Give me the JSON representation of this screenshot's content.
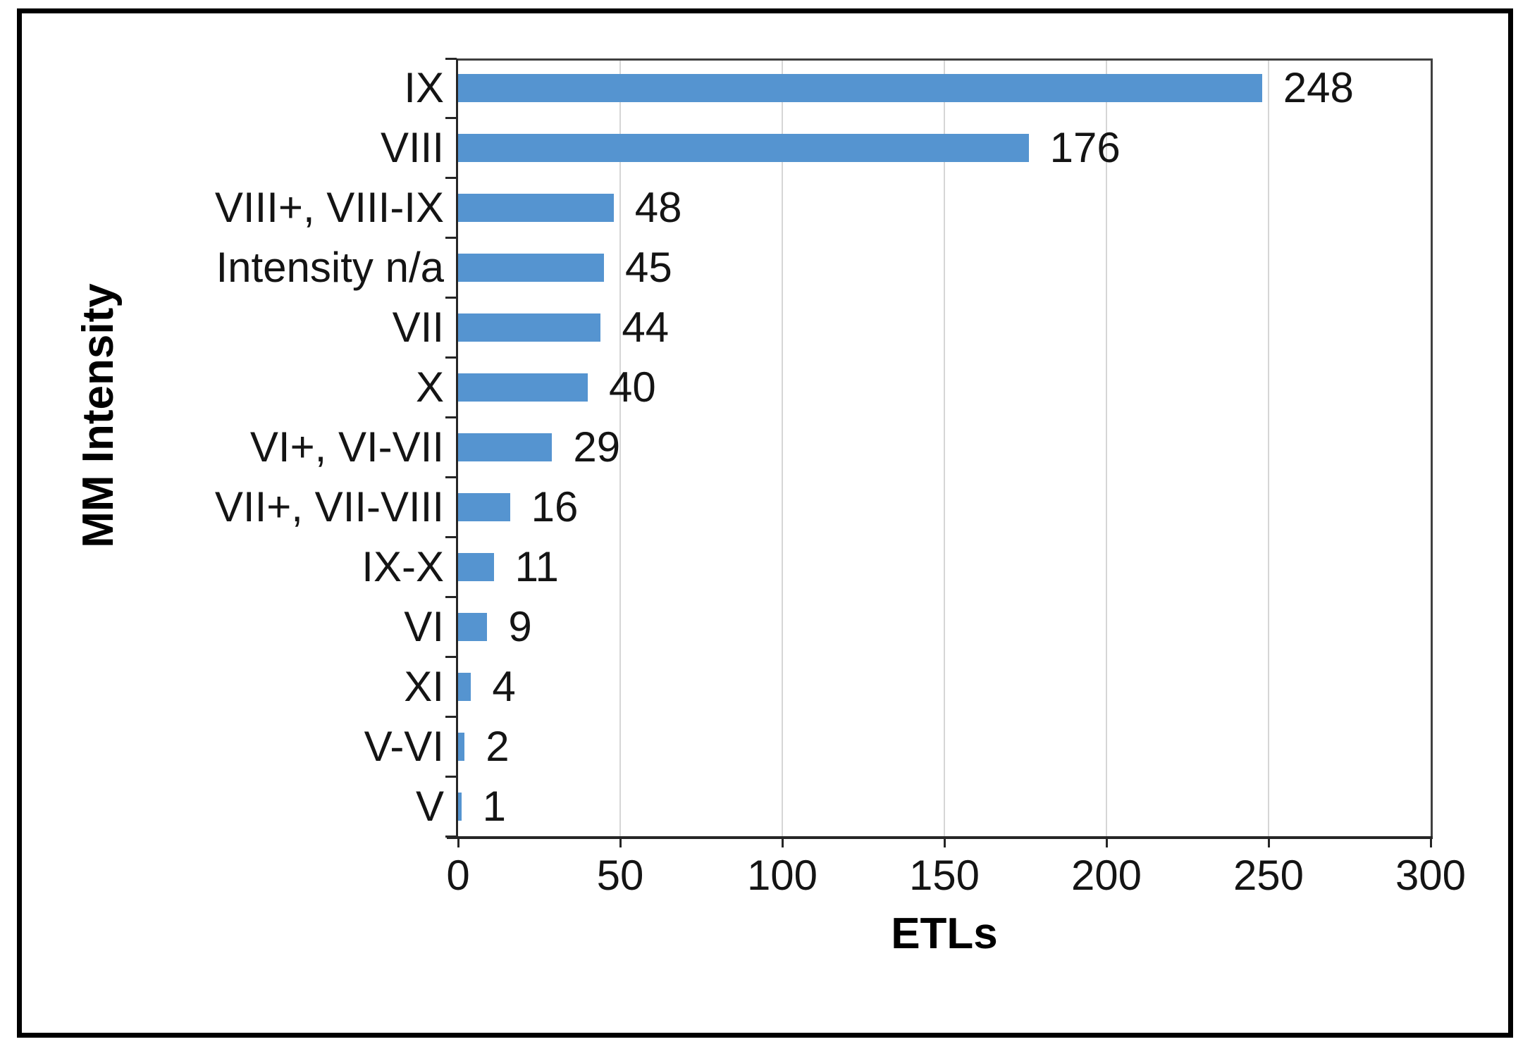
{
  "chart_data": {
    "type": "bar",
    "orientation": "horizontal",
    "xlabel": "ETLs",
    "ylabel": "MM Intensity",
    "categories": [
      "IX",
      "VIII",
      "VIII+, VIII-IX",
      "Intensity n/a",
      "VII",
      "X",
      "VI+, VI-VII",
      "VII+, VII-VIII",
      "IX-X",
      "VI",
      "XI",
      "V-VI",
      "V"
    ],
    "values": [
      248,
      176,
      48,
      45,
      44,
      40,
      29,
      16,
      11,
      9,
      4,
      2,
      1
    ],
    "data_labels": [
      "248",
      "176",
      "48",
      "45",
      "44",
      "40",
      "29",
      "16",
      "11",
      "9",
      "4",
      "2",
      "1"
    ],
    "xlim": [
      0,
      300
    ],
    "xticks": [
      0,
      50,
      100,
      150,
      200,
      250,
      300
    ],
    "xtick_labels": [
      "0",
      "50",
      "100",
      "150",
      "200",
      "250",
      "300"
    ],
    "grid": "vertical-major-gridlines",
    "legend": "none",
    "bar_color": "#5594D0",
    "gridline_color": "#D6D6D6",
    "axis_color": "#262626",
    "frame_border_color": "#000000"
  }
}
